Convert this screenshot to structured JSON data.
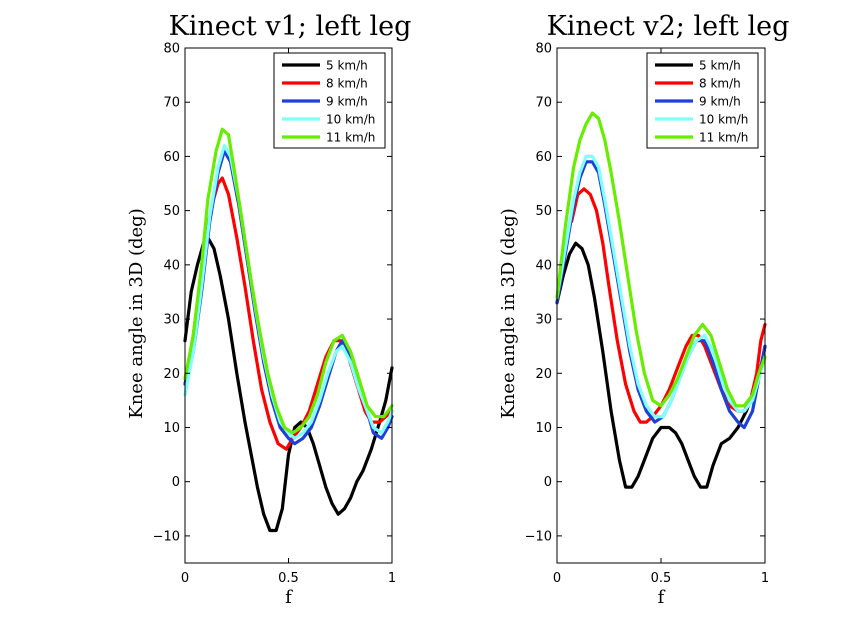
{
  "chart_data": [
    {
      "type": "line",
      "title": "Kinect v1; left leg",
      "xlabel": "f",
      "ylabel": "Knee angle in 3D (deg)",
      "xlim": [
        0,
        1
      ],
      "ylim": [
        -15,
        80
      ],
      "xticks": [
        0,
        0.5,
        1
      ],
      "xtick_labels": [
        "0",
        "0.5",
        "1"
      ],
      "yticks": [
        -10,
        0,
        10,
        20,
        30,
        40,
        50,
        60,
        70,
        80
      ],
      "ytick_labels": [
        "−10",
        "0",
        "10",
        "20",
        "30",
        "40",
        "50",
        "60",
        "70",
        "80"
      ],
      "grid": false,
      "legend_position": "top-right",
      "series": [
        {
          "name": "5 km/h",
          "color": "#000000",
          "x": [
            0,
            0.03,
            0.06,
            0.09,
            0.11,
            0.14,
            0.17,
            0.21,
            0.25,
            0.29,
            0.32,
            0.35,
            0.38,
            0.41,
            0.44,
            0.47,
            0.5,
            0.53,
            0.56,
            0.59,
            0.62,
            0.65,
            0.68,
            0.71,
            0.74,
            0.77,
            0.8,
            0.83,
            0.86,
            0.9,
            0.94,
            0.97,
            1.0
          ],
          "y": [
            26,
            35,
            40,
            44,
            45,
            43,
            38,
            30,
            20,
            11,
            5,
            -1,
            -6,
            -9,
            -9,
            -5,
            5,
            10,
            11,
            10,
            7,
            3,
            -1,
            -4,
            -6,
            -5,
            -3,
            0,
            2,
            6,
            11,
            15,
            21
          ]
        },
        {
          "name": "8 km/h",
          "color": "#ff0000",
          "x": [
            0,
            0.04,
            0.07,
            0.1,
            0.13,
            0.16,
            0.18,
            0.21,
            0.25,
            0.29,
            0.33,
            0.37,
            0.41,
            0.45,
            0.49,
            0.52,
            0.56,
            0.6,
            0.64,
            0.68,
            0.72,
            0.75,
            0.79,
            0.83,
            0.87,
            0.9,
            0.94,
            0.97,
            1.0
          ],
          "y": [
            18,
            27,
            36,
            45,
            51,
            55,
            56,
            53,
            45,
            36,
            26,
            17,
            11,
            7,
            6,
            8,
            10,
            13,
            18,
            23,
            26,
            26,
            23,
            18,
            13,
            11,
            11,
            12,
            13
          ]
        },
        {
          "name": "9 km/h",
          "color": "#1f3fd9",
          "x": [
            0,
            0.04,
            0.08,
            0.12,
            0.16,
            0.19,
            0.22,
            0.26,
            0.3,
            0.34,
            0.38,
            0.42,
            0.46,
            0.5,
            0.53,
            0.57,
            0.61,
            0.65,
            0.69,
            0.73,
            0.76,
            0.8,
            0.84,
            0.88,
            0.91,
            0.95,
            0.98,
            1.0
          ],
          "y": [
            18,
            24,
            35,
            48,
            57,
            61,
            59,
            51,
            41,
            31,
            22,
            15,
            10,
            8,
            7,
            8,
            10,
            14,
            19,
            24,
            26,
            23,
            18,
            13,
            9,
            8,
            10,
            12
          ]
        },
        {
          "name": "10 km/h",
          "color": "#7fffff",
          "x": [
            0,
            0.04,
            0.08,
            0.12,
            0.16,
            0.19,
            0.22,
            0.26,
            0.3,
            0.34,
            0.38,
            0.42,
            0.46,
            0.5,
            0.53,
            0.57,
            0.61,
            0.65,
            0.69,
            0.73,
            0.76,
            0.8,
            0.84,
            0.88,
            0.91,
            0.95,
            0.98,
            1.0
          ],
          "y": [
            16,
            24,
            36,
            49,
            58,
            62,
            60,
            52,
            42,
            32,
            23,
            16,
            11,
            9,
            8,
            9,
            11,
            15,
            20,
            24,
            25,
            22,
            17,
            13,
            10,
            9,
            11,
            13
          ]
        },
        {
          "name": "11 km/h",
          "color": "#66ee00",
          "x": [
            0,
            0.04,
            0.08,
            0.11,
            0.15,
            0.18,
            0.21,
            0.24,
            0.28,
            0.32,
            0.36,
            0.4,
            0.44,
            0.48,
            0.52,
            0.56,
            0.6,
            0.64,
            0.68,
            0.72,
            0.76,
            0.8,
            0.84,
            0.88,
            0.92,
            0.96,
            1.0
          ],
          "y": [
            19,
            27,
            40,
            52,
            61,
            65,
            64,
            57,
            47,
            37,
            28,
            20,
            14,
            10,
            9,
            10,
            12,
            16,
            22,
            26,
            27,
            24,
            19,
            14,
            12,
            12,
            14
          ]
        }
      ]
    },
    {
      "type": "line",
      "title": "Kinect v2; left leg",
      "xlabel": "f",
      "ylabel": "Knee angle in 3D (deg)",
      "xlim": [
        0,
        1
      ],
      "ylim": [
        -15,
        80
      ],
      "xticks": [
        0,
        0.5,
        1
      ],
      "xtick_labels": [
        "0",
        "0.5",
        "1"
      ],
      "yticks": [
        -10,
        0,
        10,
        20,
        30,
        40,
        50,
        60,
        70,
        80
      ],
      "ytick_labels": [
        "−10",
        "0",
        "10",
        "20",
        "30",
        "40",
        "50",
        "60",
        "70",
        "80"
      ],
      "grid": false,
      "legend_position": "top-right",
      "series": [
        {
          "name": "5 km/h",
          "color": "#000000",
          "x": [
            0,
            0.03,
            0.06,
            0.09,
            0.12,
            0.15,
            0.18,
            0.22,
            0.26,
            0.3,
            0.33,
            0.36,
            0.39,
            0.42,
            0.46,
            0.5,
            0.54,
            0.57,
            0.6,
            0.63,
            0.66,
            0.69,
            0.72,
            0.75,
            0.79,
            0.83,
            0.87,
            0.91,
            0.95,
            0.98,
            1.0
          ],
          "y": [
            33,
            38,
            42,
            44,
            43,
            40,
            34,
            24,
            13,
            4,
            -1,
            -1,
            1,
            4,
            8,
            10,
            10,
            9,
            7,
            4,
            1,
            -1,
            -1,
            3,
            7,
            8,
            10,
            13,
            17,
            21,
            25
          ]
        },
        {
          "name": "8 km/h",
          "color": "#ff0000",
          "x": [
            0.07,
            0.1,
            0.13,
            0.16,
            0.19,
            0.22,
            0.25,
            0.29,
            0.33,
            0.37,
            0.4,
            0.43,
            0.46,
            0.5,
            0.54,
            0.58,
            0.62,
            0.65,
            0.68,
            0.71,
            0.75,
            0.79,
            0.83,
            0.87,
            0.9,
            0.93,
            0.96,
            0.98,
            1.0
          ],
          "y": [
            48,
            53,
            54,
            53,
            50,
            44,
            36,
            26,
            18,
            13,
            11,
            11,
            12,
            14,
            17,
            21,
            25,
            27,
            27,
            25,
            21,
            17,
            14,
            13,
            13,
            15,
            20,
            26,
            29
          ]
        },
        {
          "name": "9 km/h",
          "color": "#1f3fd9",
          "x": [
            0,
            0.04,
            0.08,
            0.11,
            0.14,
            0.17,
            0.2,
            0.23,
            0.27,
            0.31,
            0.35,
            0.39,
            0.43,
            0.47,
            0.51,
            0.55,
            0.59,
            0.63,
            0.67,
            0.71,
            0.75,
            0.79,
            0.83,
            0.87,
            0.9,
            0.94,
            0.97,
            1.0
          ],
          "y": [
            33,
            42,
            51,
            56,
            59,
            59,
            57,
            51,
            42,
            33,
            24,
            17,
            13,
            11,
            12,
            15,
            19,
            23,
            26,
            26,
            22,
            17,
            13,
            11,
            10,
            13,
            19,
            25
          ]
        },
        {
          "name": "10 km/h",
          "color": "#7fffff",
          "x": [
            0,
            0.04,
            0.08,
            0.11,
            0.14,
            0.17,
            0.2,
            0.23,
            0.27,
            0.31,
            0.35,
            0.39,
            0.43,
            0.47,
            0.51,
            0.55,
            0.59,
            0.63,
            0.67,
            0.71,
            0.75,
            0.79,
            0.83,
            0.87,
            0.9,
            0.94,
            0.97,
            1.0
          ],
          "y": [
            34,
            43,
            52,
            57,
            60,
            60,
            58,
            52,
            43,
            34,
            25,
            18,
            14,
            12,
            12,
            15,
            19,
            23,
            26,
            27,
            24,
            19,
            15,
            13,
            13,
            15,
            19,
            23
          ]
        },
        {
          "name": "11 km/h",
          "color": "#66ee00",
          "x": [
            0,
            0.04,
            0.08,
            0.11,
            0.14,
            0.17,
            0.2,
            0.23,
            0.26,
            0.3,
            0.34,
            0.38,
            0.42,
            0.46,
            0.5,
            0.54,
            0.58,
            0.62,
            0.66,
            0.7,
            0.74,
            0.78,
            0.82,
            0.86,
            0.9,
            0.94,
            0.97,
            1.0
          ],
          "y": [
            34,
            47,
            58,
            63,
            66,
            68,
            67,
            63,
            57,
            48,
            38,
            28,
            20,
            15,
            14,
            16,
            19,
            23,
            27,
            29,
            27,
            22,
            17,
            14,
            14,
            16,
            20,
            23
          ]
        }
      ]
    }
  ]
}
